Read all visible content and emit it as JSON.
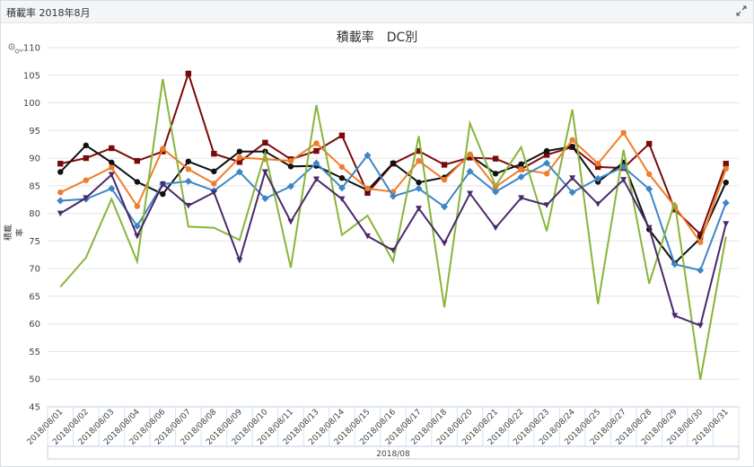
{
  "header": {
    "title": "積載率 2018年8月",
    "expand_icon": "expand-arrows-icon"
  },
  "toolbar": {
    "gear_icon": "gear-icon"
  },
  "chart_data": {
    "type": "line",
    "title": "積載率　DC別",
    "ylabel": "積載率",
    "xlabel": "",
    "x_group_label": "2018/08",
    "ylim": [
      45,
      110
    ],
    "yticks": [
      45,
      50,
      55,
      60,
      65,
      70,
      75,
      80,
      85,
      90,
      95,
      100,
      105,
      110
    ],
    "grid": true,
    "categories": [
      "2018/08/01",
      "2018/08/02",
      "2018/08/03",
      "2018/08/04",
      "2018/08/06",
      "2018/08/07",
      "2018/08/08",
      "2018/08/09",
      "2018/08/10",
      "2018/08/11",
      "2018/08/13",
      "2018/08/14",
      "2018/08/15",
      "2018/08/16",
      "2018/08/17",
      "2018/08/18",
      "2018/08/20",
      "2018/08/21",
      "2018/08/22",
      "2018/08/23",
      "2018/08/24",
      "2018/08/25",
      "2018/08/27",
      "2018/08/28",
      "2018/08/29",
      "2018/08/30",
      "2018/08/31"
    ],
    "series": [
      {
        "color": "#7a0a0a",
        "marker": "square",
        "values": [
          89.0,
          90.0,
          91.8,
          89.5,
          91.2,
          105.3,
          90.8,
          89.3,
          92.8,
          89.8,
          91.3,
          94.1,
          83.7,
          89.0,
          91.3,
          88.8,
          90.1,
          89.9,
          88.0,
          90.6,
          92.0,
          88.4,
          88.2,
          92.6,
          80.7,
          76.2,
          89.0
        ]
      },
      {
        "color": "#111111",
        "marker": "circle",
        "values": [
          87.5,
          92.3,
          89.2,
          85.7,
          83.5,
          89.4,
          87.6,
          91.2,
          91.2,
          88.5,
          88.6,
          86.4,
          84.2,
          89.1,
          85.6,
          86.5,
          90.5,
          87.2,
          88.9,
          91.3,
          92.1,
          85.7,
          89.2,
          77.1,
          71.0,
          75.5,
          85.6
        ]
      },
      {
        "color": "#ef7d2b",
        "marker": "circle",
        "values": [
          83.8,
          86.0,
          88.3,
          81.3,
          91.7,
          88.0,
          85.4,
          90.1,
          89.8,
          89.5,
          92.7,
          88.4,
          84.5,
          83.9,
          89.5,
          86.1,
          90.7,
          84.8,
          88.0,
          87.2,
          93.3,
          89.0,
          94.6,
          87.1,
          81.3,
          74.8,
          88.1
        ]
      },
      {
        "color": "#3d86c6",
        "marker": "diamond",
        "values": [
          82.3,
          82.6,
          84.5,
          77.7,
          85.3,
          85.8,
          84.1,
          87.5,
          82.7,
          84.9,
          89.1,
          84.6,
          90.5,
          83.1,
          84.5,
          81.2,
          87.6,
          83.9,
          86.6,
          89.1,
          83.8,
          86.3,
          88.4,
          84.4,
          70.8,
          69.7,
          81.9
        ]
      },
      {
        "color": "#88b53a",
        "marker": "none",
        "values": [
          66.7,
          72.0,
          82.6,
          71.3,
          104.3,
          77.6,
          77.4,
          75.2,
          90.9,
          70.2,
          99.6,
          76.1,
          79.6,
          71.3,
          94.0,
          63.0,
          96.3,
          85.0,
          92.0,
          76.8,
          98.8,
          63.6,
          91.5,
          67.3,
          82.0,
          49.9,
          75.8
        ]
      },
      {
        "color": "#4a2a6a",
        "marker": "triangle-down",
        "values": [
          80.0,
          82.8,
          87.0,
          75.9,
          85.3,
          81.4,
          83.8,
          71.5,
          87.5,
          78.5,
          86.2,
          82.6,
          75.9,
          73.3,
          80.9,
          74.6,
          83.6,
          77.4,
          82.8,
          81.5,
          86.4,
          81.7,
          86.1,
          77.4,
          61.5,
          59.7,
          78.1
        ]
      }
    ]
  }
}
